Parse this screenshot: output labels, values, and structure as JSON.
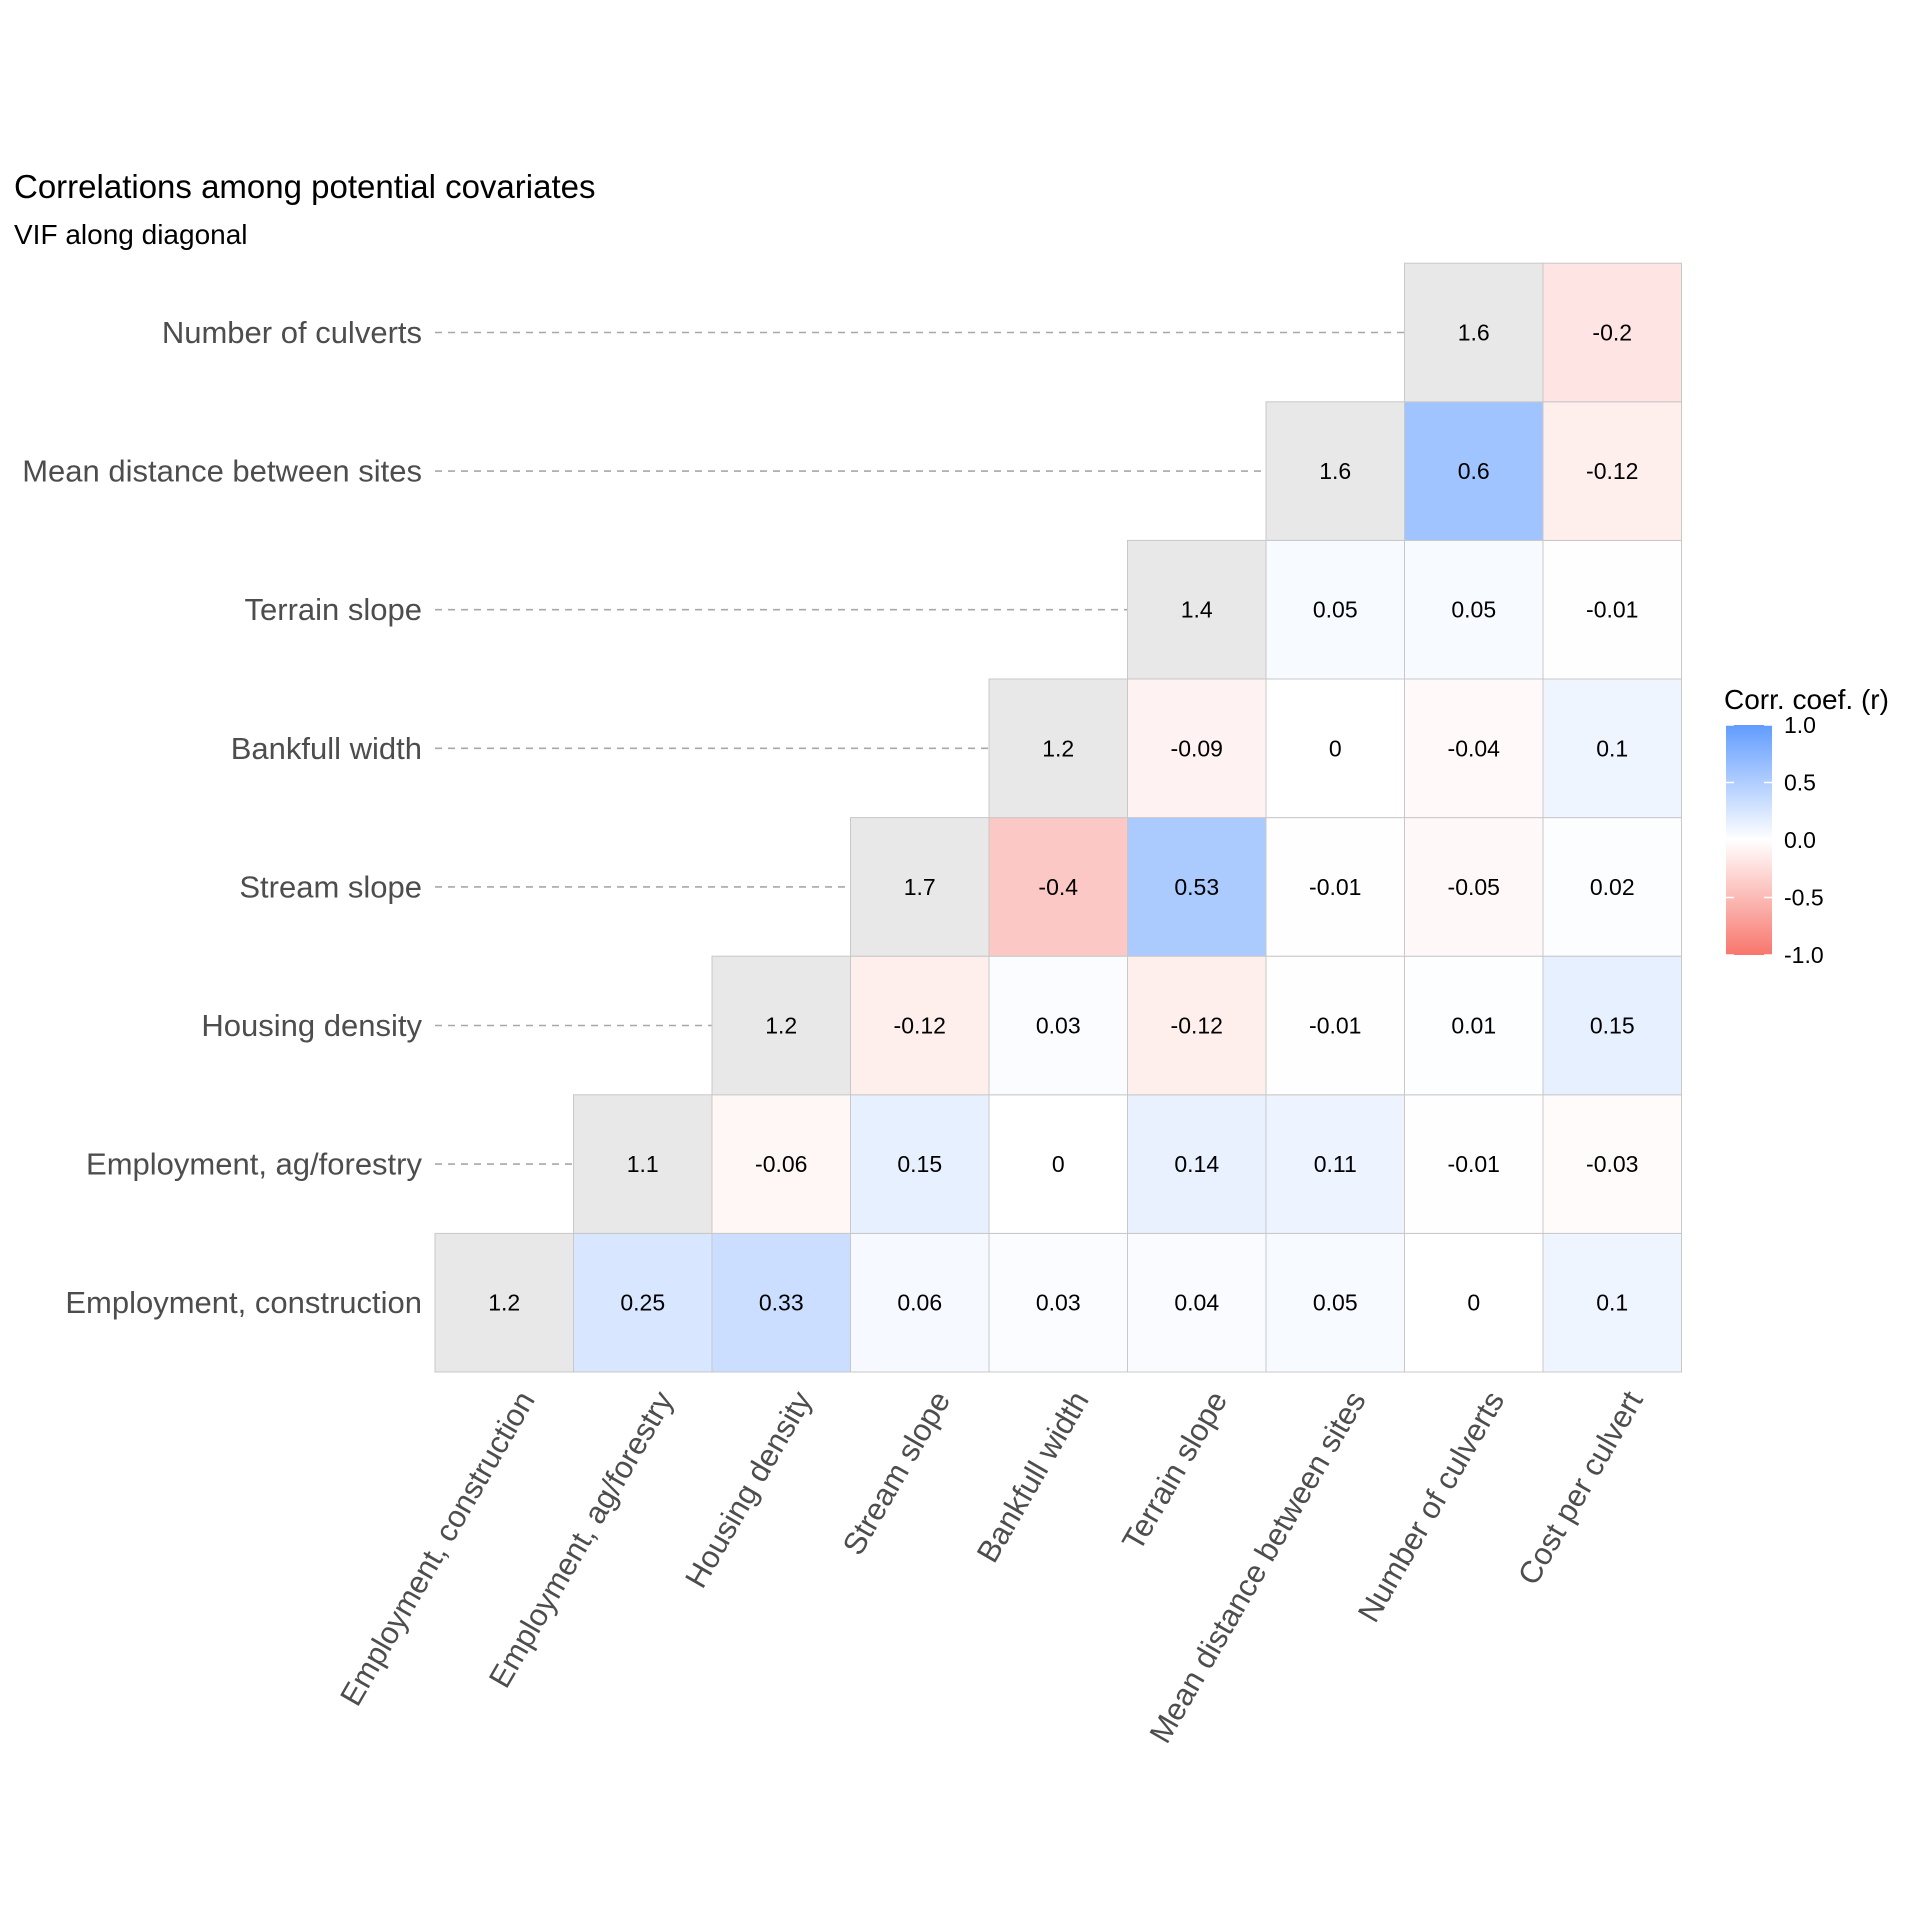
{
  "chart_data": {
    "type": "heatmap",
    "title": "Correlations among potential covariates",
    "subtitle": "VIF along diagonal",
    "variables": [
      "Employment, construction",
      "Employment, ag/forestry",
      "Housing density",
      "Stream slope",
      "Bankfull width",
      "Terrain slope",
      "Mean distance between sites",
      "Number of culverts",
      "Cost per culvert"
    ],
    "rows": [
      {
        "name": "Employment, construction",
        "diag_col": 0,
        "values": [
          "1.2",
          "0.25",
          "0.33",
          "0.06",
          "0.03",
          "0.04",
          "0.05",
          "0",
          "0.1"
        ]
      },
      {
        "name": "Employment, ag/forestry",
        "diag_col": 1,
        "values": [
          "1.1",
          "-0.06",
          "0.15",
          "0",
          "0.14",
          "0.11",
          "-0.01",
          "-0.03"
        ]
      },
      {
        "name": "Housing density",
        "diag_col": 2,
        "values": [
          "1.2",
          "-0.12",
          "0.03",
          "-0.12",
          "-0.01",
          "0.01",
          "0.15"
        ]
      },
      {
        "name": "Stream slope",
        "diag_col": 3,
        "values": [
          "1.7",
          "-0.4",
          "0.53",
          "-0.01",
          "-0.05",
          "0.02"
        ]
      },
      {
        "name": "Bankfull width",
        "diag_col": 4,
        "values": [
          "1.2",
          "-0.09",
          "0",
          "-0.04",
          "0.1"
        ]
      },
      {
        "name": "Terrain slope",
        "diag_col": 5,
        "values": [
          "1.4",
          "0.05",
          "0.05",
          "-0.01"
        ]
      },
      {
        "name": "Mean distance between sites",
        "diag_col": 6,
        "values": [
          "1.6",
          "0.6",
          "-0.12"
        ]
      },
      {
        "name": "Number of culverts",
        "diag_col": 7,
        "values": [
          "1.6",
          "-0.2"
        ]
      }
    ],
    "legend": {
      "title": "Corr. coef. (r)",
      "ticks": [
        "1.0",
        "0.5",
        "0.0",
        "-0.5",
        "-1.0"
      ],
      "limits": [
        -1,
        1
      ],
      "placement": "right"
    },
    "colors": {
      "low": "#F8766D",
      "mid": "#FFFFFF",
      "high": "#619CFF",
      "diagonal": "#E8E8E8",
      "cell_border": "#C8C8C8",
      "guide_line": "#A8A8A8"
    }
  }
}
